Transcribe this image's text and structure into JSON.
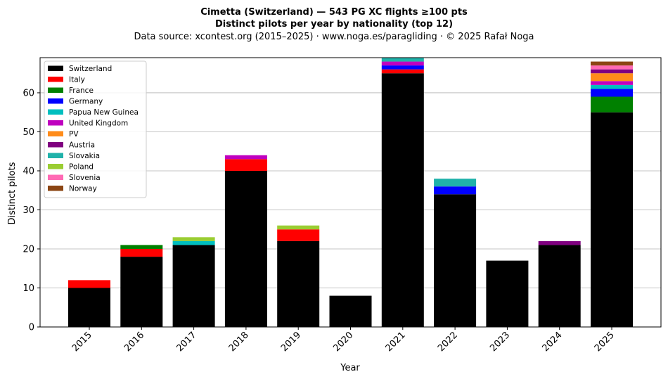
{
  "chart_data": {
    "type": "bar",
    "stacked": true,
    "title_lines": [
      "Cimetta (Switzerland)  —  543 PG XC flights ≥100 pts",
      "Distinct pilots per year by nationality (top 12)",
      "Data source: xcontest.org (2015–2025)  ·  www.noga.es/paragliding  ·  © 2025 Rafał Noga"
    ],
    "xlabel": "Year",
    "ylabel": "Distinct pilots",
    "ylim": [
      0,
      69
    ],
    "yticks": [
      0,
      10,
      20,
      30,
      40,
      50,
      60
    ],
    "grid": "y",
    "legend_position": "top-left",
    "categories": [
      "2015",
      "2016",
      "2017",
      "2018",
      "2019",
      "2020",
      "2021",
      "2022",
      "2023",
      "2024",
      "2025"
    ],
    "series": [
      {
        "name": "Switzerland",
        "color": "#000000",
        "values": [
          10,
          18,
          21,
          40,
          22,
          8,
          65,
          34,
          17,
          21,
          55
        ]
      },
      {
        "name": "Italy",
        "color": "#ff0000",
        "values": [
          2,
          2,
          0,
          3,
          3,
          0,
          1,
          0,
          0,
          0,
          0
        ]
      },
      {
        "name": "France",
        "color": "#008000",
        "values": [
          0,
          1,
          0,
          0,
          0,
          0,
          0,
          0,
          0,
          0,
          4
        ]
      },
      {
        "name": "Germany",
        "color": "#0000ff",
        "values": [
          0,
          0,
          0,
          0,
          0,
          0,
          1,
          2,
          0,
          0,
          2
        ]
      },
      {
        "name": "Papua New Guinea",
        "color": "#00bfbf",
        "values": [
          0,
          0,
          1,
          0,
          0,
          0,
          0,
          0,
          0,
          0,
          1
        ]
      },
      {
        "name": "United Kingdom",
        "color": "#bf00bf",
        "values": [
          0,
          0,
          0,
          1,
          0,
          0,
          1,
          0,
          0,
          0,
          1
        ]
      },
      {
        "name": "PV",
        "color": "#ff8c1a",
        "values": [
          0,
          0,
          0,
          0,
          0,
          0,
          0,
          0,
          0,
          0,
          2
        ]
      },
      {
        "name": "Austria",
        "color": "#800080",
        "values": [
          0,
          0,
          0,
          0,
          0,
          0,
          0,
          0,
          0,
          1,
          1
        ]
      },
      {
        "name": "Slovakia",
        "color": "#20b2aa",
        "values": [
          0,
          0,
          0,
          0,
          0,
          0,
          1,
          2,
          0,
          0,
          0
        ]
      },
      {
        "name": "Poland",
        "color": "#9acd32",
        "values": [
          0,
          0,
          1,
          0,
          1,
          0,
          0,
          0,
          0,
          0,
          0
        ]
      },
      {
        "name": "Slovenia",
        "color": "#ff69b4",
        "values": [
          0,
          0,
          0,
          0,
          0,
          0,
          0,
          0,
          0,
          0,
          1
        ]
      },
      {
        "name": "Norway",
        "color": "#8b4513",
        "values": [
          0,
          0,
          0,
          0,
          0,
          0,
          0,
          0,
          0,
          0,
          1
        ]
      }
    ]
  }
}
